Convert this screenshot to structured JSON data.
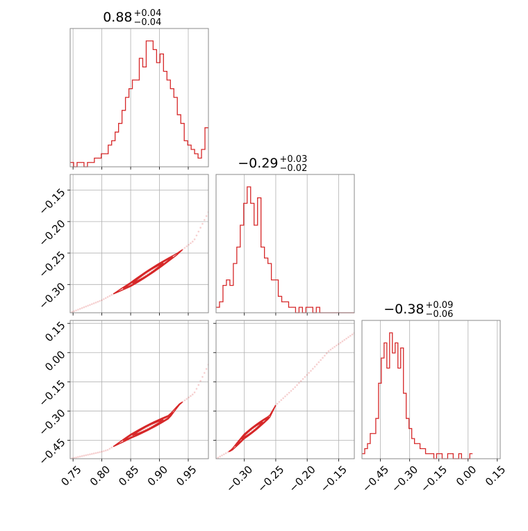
{
  "chart_data": {
    "type": "corner",
    "color": "#d62728",
    "parameters": [
      {
        "title": {
          "value": "0.88",
          "plus": "+0.04",
          "minus": "−0.04"
        },
        "range": [
          0.745,
          0.985
        ],
        "ticks": [
          {
            "v": 0.75,
            "label": "0.75"
          },
          {
            "v": 0.8,
            "label": "0.80"
          },
          {
            "v": 0.85,
            "label": "0.85"
          },
          {
            "v": 0.9,
            "label": "0.90"
          },
          {
            "v": 0.95,
            "label": "0.95"
          }
        ],
        "hist_edges_start": 0.745,
        "hist_edges_step": 0.006,
        "hist_counts": [
          1,
          0,
          1,
          1,
          0,
          1,
          1,
          2,
          2,
          3,
          3,
          5,
          6,
          8,
          10,
          13,
          16,
          18,
          20,
          20,
          25,
          23,
          29,
          29,
          27,
          24,
          26,
          22,
          20,
          18,
          16,
          12,
          10,
          6,
          5,
          4,
          3,
          2,
          4,
          9
        ]
      },
      {
        "title": {
          "value": "−0.29",
          "plus": "+0.03",
          "minus": "−0.02"
        },
        "range": [
          -0.345,
          -0.125
        ],
        "ticks": [
          {
            "v": -0.3,
            "label": "−0.30"
          },
          {
            "v": -0.25,
            "label": "−0.25"
          },
          {
            "v": -0.2,
            "label": "−0.20"
          },
          {
            "v": -0.15,
            "label": "−0.15"
          }
        ],
        "hist_edges_start": -0.345,
        "hist_edges_step": 0.0055,
        "hist_counts": [
          1,
          2,
          5,
          6,
          5,
          9,
          12,
          16,
          20,
          23,
          20,
          16,
          21,
          12,
          10,
          9,
          6,
          6,
          3,
          2,
          2,
          1,
          1,
          0,
          1,
          0,
          1,
          1,
          0,
          1,
          0,
          0,
          0,
          0,
          0,
          0,
          0,
          0,
          0,
          0
        ]
      },
      {
        "title": {
          "value": "−0.38",
          "plus": "+0.09",
          "minus": "−0.06"
        },
        "range": [
          -0.545,
          0.165
        ],
        "ticks": [
          {
            "v": -0.45,
            "label": "−0.45"
          },
          {
            "v": -0.3,
            "label": "−0.30"
          },
          {
            "v": -0.15,
            "label": "−0.15"
          },
          {
            "v": 0.0,
            "label": "0.00"
          },
          {
            "v": 0.15,
            "label": "0.15"
          }
        ],
        "hist_edges_start": -0.545,
        "hist_edges_step": 0.0142,
        "hist_counts": [
          1,
          2,
          3,
          5,
          5,
          8,
          15,
          20,
          23,
          18,
          25,
          21,
          23,
          18,
          22,
          13,
          8,
          6,
          4,
          3,
          3,
          2,
          2,
          1,
          1,
          1,
          0,
          1,
          1,
          0,
          0,
          1,
          1,
          0,
          0,
          1,
          0,
          0,
          0,
          1
        ]
      }
    ],
    "pairs": [
      {
        "x": 0,
        "y": 1,
        "ylim": [
          -0.345,
          -0.125
        ],
        "yticks": [
          {
            "v": -0.3,
            "label": "−0.30"
          },
          {
            "v": -0.25,
            "label": "−0.25"
          },
          {
            "v": -0.2,
            "label": "−0.20"
          },
          {
            "v": -0.15,
            "label": "−0.15"
          }
        ]
      },
      {
        "x": 0,
        "y": 2,
        "ylim": [
          -0.545,
          0.165
        ],
        "yticks": [
          {
            "v": -0.45,
            "label": "−0.45"
          },
          {
            "v": -0.3,
            "label": "−0.30"
          },
          {
            "v": -0.15,
            "label": "−0.15"
          },
          {
            "v": 0.0,
            "label": "0.00"
          },
          {
            "v": 0.15,
            "label": "0.15"
          }
        ]
      },
      {
        "x": 1,
        "y": 2,
        "ylim": [
          -0.545,
          0.165
        ],
        "yticks": []
      }
    ],
    "relations": {
      "p1_of_p0": [
        [
          0.745,
          -0.345
        ],
        [
          0.8,
          -0.325
        ],
        [
          0.85,
          -0.3
        ],
        [
          0.9,
          -0.27
        ],
        [
          0.93,
          -0.252
        ],
        [
          0.96,
          -0.23
        ],
        [
          0.985,
          -0.185
        ]
      ],
      "p2_of_p1": [
        [
          -0.345,
          -0.545
        ],
        [
          -0.32,
          -0.5
        ],
        [
          -0.3,
          -0.43
        ],
        [
          -0.28,
          -0.38
        ],
        [
          -0.26,
          -0.33
        ],
        [
          -0.25,
          -0.27
        ],
        [
          -0.22,
          -0.18
        ],
        [
          -0.19,
          -0.08
        ],
        [
          -0.165,
          0.01
        ],
        [
          -0.125,
          0.1
        ]
      ]
    },
    "grid": true
  }
}
